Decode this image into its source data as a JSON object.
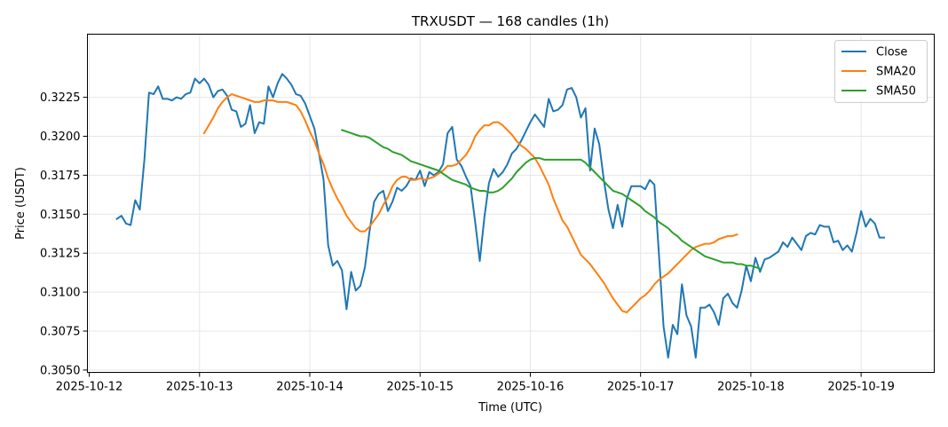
{
  "chart_data": {
    "type": "line",
    "title": "TRXUSDT — 168 candles (1h)",
    "xlabel": "Time (UTC)",
    "ylabel": "Price (USDT)",
    "x_ticks": [
      "2025-10-12",
      "2025-10-13",
      "2025-10-14",
      "2025-10-15",
      "2025-10-16",
      "2025-10-17",
      "2025-10-18",
      "2025-10-19"
    ],
    "y_ticks": [
      "0.3050",
      "0.3075",
      "0.3100",
      "0.3125",
      "0.3150",
      "0.3175",
      "0.3200",
      "0.3225"
    ],
    "xlim": [
      "2025-10-11 23:36",
      "2025-10-19 15:55"
    ],
    "ylim": [
      0.30485,
      0.32655
    ],
    "grid": true,
    "legend_position": "upper right",
    "series": [
      {
        "name": "Close",
        "color": "#1f77b4",
        "x_start": "2025-10-12 06:00",
        "values": [
          0.3147,
          0.3149,
          0.3144,
          0.3143,
          0.3159,
          0.3153,
          0.3185,
          0.3228,
          0.3227,
          0.3232,
          0.3224,
          0.3224,
          0.3223,
          0.3225,
          0.3224,
          0.3227,
          0.3228,
          0.3237,
          0.3234,
          0.3237,
          0.3233,
          0.3225,
          0.3229,
          0.323,
          0.3226,
          0.3217,
          0.3216,
          0.3206,
          0.3208,
          0.322,
          0.3202,
          0.3209,
          0.3208,
          0.3232,
          0.3225,
          0.3234,
          0.324,
          0.3237,
          0.3233,
          0.3227,
          0.3226,
          0.3221,
          0.3213,
          0.3205,
          0.3189,
          0.3172,
          0.313,
          0.3117,
          0.312,
          0.3114,
          0.3089,
          0.3113,
          0.3101,
          0.3104,
          0.3116,
          0.3139,
          0.3158,
          0.3163,
          0.3165,
          0.3152,
          0.3158,
          0.3167,
          0.3165,
          0.3168,
          0.3173,
          0.3172,
          0.3178,
          0.3168,
          0.3177,
          0.3175,
          0.3177,
          0.3182,
          0.3202,
          0.3206,
          0.3185,
          0.3181,
          0.3174,
          0.3168,
          0.3145,
          0.312,
          0.3148,
          0.317,
          0.3179,
          0.3174,
          0.3177,
          0.3182,
          0.3189,
          0.3192,
          0.3197,
          0.3203,
          0.3209,
          0.3214,
          0.321,
          0.3206,
          0.3224,
          0.3216,
          0.3217,
          0.322,
          0.323,
          0.3231,
          0.3225,
          0.3212,
          0.3218,
          0.3178,
          0.3205,
          0.3195,
          0.3172,
          0.3153,
          0.3141,
          0.3156,
          0.3142,
          0.316,
          0.3168,
          0.3168,
          0.3168,
          0.3166,
          0.3172,
          0.3169,
          0.3124,
          0.3078,
          0.3058,
          0.3079,
          0.3073,
          0.3105,
          0.3085,
          0.3078,
          0.3058,
          0.309,
          0.309,
          0.3092,
          0.3087,
          0.3079,
          0.3096,
          0.3099,
          0.3093,
          0.309,
          0.3101,
          0.3117,
          0.3107,
          0.3122,
          0.3113,
          0.3121,
          0.3122,
          0.3124,
          0.3126,
          0.3132,
          0.3129,
          0.3135,
          0.3131,
          0.3127,
          0.3136,
          0.3138,
          0.3137,
          0.3143,
          0.3142,
          0.3142,
          0.3132,
          0.3133,
          0.3127,
          0.313,
          0.3126,
          0.3138,
          0.3152,
          0.3142,
          0.3147,
          0.3144,
          0.3135,
          0.3135
        ]
      },
      {
        "name": "SMA20",
        "color": "#ff7f0e",
        "x_start": "2025-10-13 01:00",
        "values": [
          0.3202,
          0.3207,
          0.3212,
          0.3218,
          0.3222,
          0.3225,
          0.3227,
          0.3226,
          0.3225,
          0.3224,
          0.3223,
          0.3222,
          0.3222,
          0.3223,
          0.3223,
          0.3223,
          0.3222,
          0.3222,
          0.3222,
          0.3221,
          0.322,
          0.3216,
          0.321,
          0.3203,
          0.3197,
          0.3189,
          0.3182,
          0.3173,
          0.3166,
          0.316,
          0.3155,
          0.3149,
          0.3145,
          0.3141,
          0.3139,
          0.3139,
          0.3142,
          0.3146,
          0.315,
          0.3156,
          0.3161,
          0.3168,
          0.3172,
          0.3174,
          0.3174,
          0.3172,
          0.3172,
          0.3173,
          0.3172,
          0.3173,
          0.3174,
          0.3176,
          0.3178,
          0.3181,
          0.3181,
          0.3182,
          0.3185,
          0.3188,
          0.3193,
          0.32,
          0.3204,
          0.3207,
          0.3207,
          0.3209,
          0.3209,
          0.3207,
          0.3204,
          0.3201,
          0.3197,
          0.3194,
          0.3192,
          0.3189,
          0.3186,
          0.3181,
          0.3175,
          0.3169,
          0.316,
          0.3153,
          0.3146,
          0.3142,
          0.3136,
          0.313,
          0.3124,
          0.3121,
          0.3118,
          0.3114,
          0.311,
          0.3106,
          0.3101,
          0.3096,
          0.3092,
          0.3088,
          0.3087,
          0.309,
          0.3093,
          0.3096,
          0.3098,
          0.3101,
          0.3105,
          0.3108,
          0.311,
          0.3112,
          0.3115,
          0.3118,
          0.3121,
          0.3124,
          0.3127,
          0.3129,
          0.313,
          0.3131,
          0.3131,
          0.3132,
          0.3134,
          0.3135,
          0.3136,
          0.3136,
          0.3137
        ]
      },
      {
        "name": "SMA50",
        "color": "#2ca02c",
        "x_start": "2025-10-14 07:00",
        "values": [
          0.3204,
          0.3203,
          0.3202,
          0.3201,
          0.32,
          0.32,
          0.3199,
          0.3197,
          0.3195,
          0.3193,
          0.3192,
          0.319,
          0.3189,
          0.3188,
          0.3186,
          0.3184,
          0.3183,
          0.3182,
          0.3181,
          0.318,
          0.3179,
          0.3178,
          0.3176,
          0.3174,
          0.3172,
          0.3171,
          0.317,
          0.3169,
          0.3167,
          0.3166,
          0.3165,
          0.3165,
          0.3164,
          0.3164,
          0.3165,
          0.3167,
          0.317,
          0.3173,
          0.3177,
          0.318,
          0.3183,
          0.3185,
          0.3186,
          0.3186,
          0.3185,
          0.3185,
          0.3185,
          0.3185,
          0.3185,
          0.3185,
          0.3185,
          0.3185,
          0.3185,
          0.3183,
          0.318,
          0.3177,
          0.3174,
          0.3171,
          0.3168,
          0.3165,
          0.3164,
          0.3163,
          0.3161,
          0.3159,
          0.3157,
          0.3155,
          0.3152,
          0.315,
          0.3148,
          0.3145,
          0.3143,
          0.3141,
          0.3138,
          0.3136,
          0.3133,
          0.3131,
          0.3129,
          0.3127,
          0.3125,
          0.3123,
          0.3122,
          0.3121,
          0.312,
          0.3119,
          0.3119,
          0.3119,
          0.3118,
          0.3118,
          0.3117,
          0.3117,
          0.3116,
          0.3115
        ]
      }
    ]
  }
}
